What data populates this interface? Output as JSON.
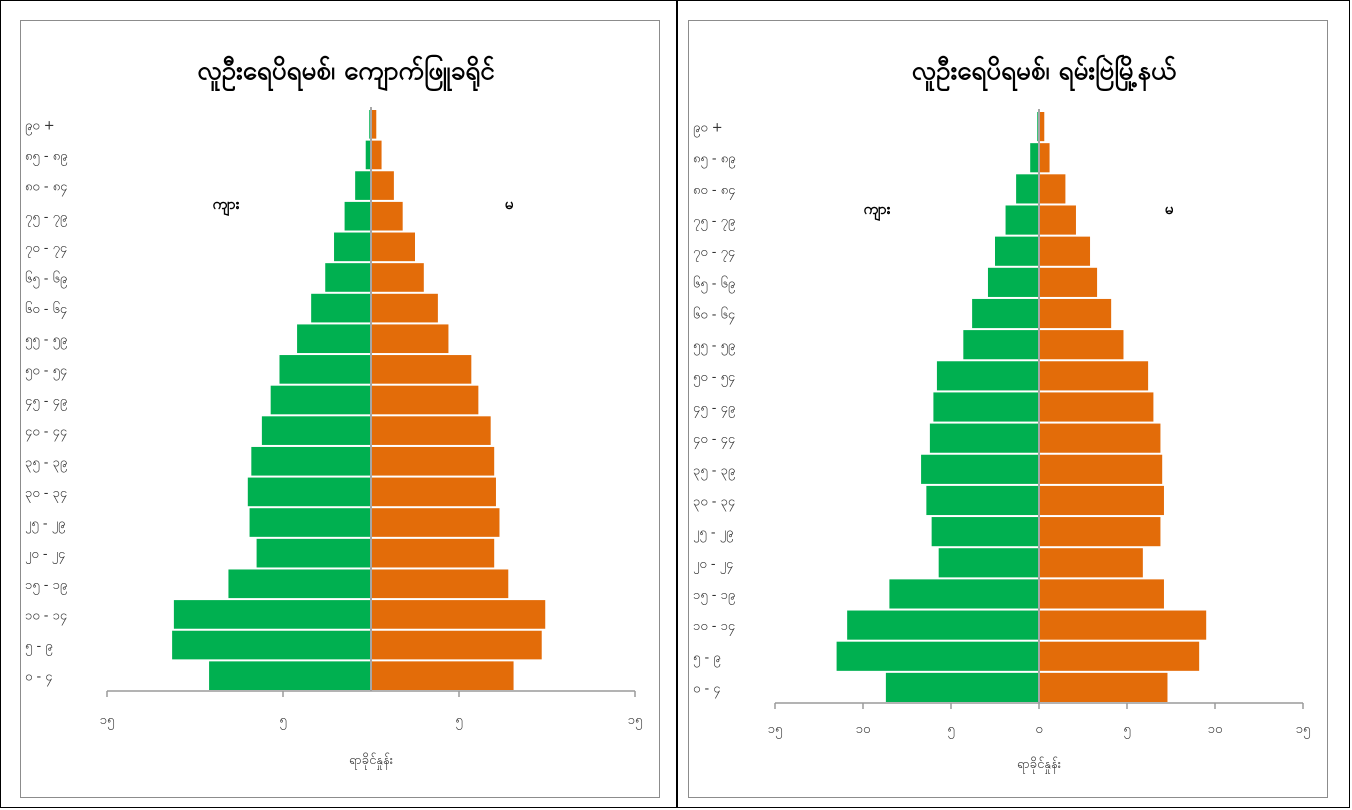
{
  "colors": {
    "male": "#00b050",
    "female": "#e36c09",
    "axis": "#9a9a9a",
    "spine": "#a6a6a6"
  },
  "chart_data": [
    {
      "type": "bar",
      "orientation": "horizontal-pyramid",
      "title": "လူဦးရေပိရမစ်၊ ကျောက်ဖြူခရိုင်",
      "xlabel": "ရာခိုင်နှုန်း",
      "categories": [
        "၀ - ၄",
        "၅ - ၉",
        "၁၀ - ၁၄",
        "၁၅ - ၁၉",
        "၂၀ - ၂၄",
        "၂၅ - ၂၉",
        "၃၀ - ၃၄",
        "၃၅ - ၃၉",
        "၄၀ - ၄၄",
        "၄၅ - ၄၉",
        "၅၀ - ၅၄",
        "၅၅ - ၅၉",
        "၆၀ - ၆၄",
        "၆၅ - ၆၉",
        "၇၀ - ၇၄",
        "၇၅ - ၇၉",
        "၈၀ - ၈၄",
        "၈၅ - ၈၉",
        "၉၀ +"
      ],
      "series": [
        {
          "name": "ကျား",
          "values": [
            9.2,
            11.3,
            11.2,
            8.1,
            6.5,
            6.9,
            7.0,
            6.8,
            6.2,
            5.7,
            5.2,
            4.2,
            3.4,
            2.6,
            2.1,
            1.5,
            0.9,
            0.3,
            0.1
          ]
        },
        {
          "name": "မ",
          "values": [
            8.1,
            9.7,
            9.9,
            7.8,
            7.0,
            7.3,
            7.1,
            7.0,
            6.8,
            6.1,
            5.7,
            4.4,
            3.8,
            3.0,
            2.5,
            1.8,
            1.3,
            0.6,
            0.3
          ]
        }
      ],
      "x_tick_labels": [
        "၁၅",
        "၅",
        "၅",
        "၁၅"
      ],
      "xlim": [
        -15,
        15
      ],
      "legend": {
        "male": "ကျား",
        "female": "မ"
      }
    },
    {
      "type": "bar",
      "orientation": "horizontal-pyramid",
      "title": "လူဦးရေပိရမစ်၊ ရမ်းဗြဲမြို့နယ်",
      "xlabel": "ရာခိုင်နှုန်း",
      "categories": [
        "၀ - ၄",
        "၅ - ၉",
        "၁၀ - ၁၄",
        "၁၅ - ၁၉",
        "၂၀ - ၂၄",
        "၂၅ - ၂၉",
        "၃၀ - ၃၄",
        "၃၅ - ၃၉",
        "၄၀ - ၄၄",
        "၄၅ - ၄၉",
        "၅၀ - ၅၄",
        "၅၅ - ၅၉",
        "၆၀ - ၆၄",
        "၆၅ - ၆၉",
        "၇၀ - ၇၄",
        "၇၅ - ၇၉",
        "၈၀ - ၈၄",
        "၈၅ - ၈၉",
        "၉၀ +"
      ],
      "series": [
        {
          "name": "ကျား",
          "values": [
            8.7,
            11.5,
            10.9,
            8.5,
            5.7,
            6.1,
            6.4,
            6.7,
            6.2,
            6.0,
            5.8,
            4.3,
            3.8,
            2.9,
            2.5,
            1.9,
            1.3,
            0.5,
            0.1
          ]
        },
        {
          "name": "မ",
          "values": [
            7.3,
            9.1,
            9.5,
            7.1,
            5.9,
            6.9,
            7.1,
            7.0,
            6.9,
            6.5,
            6.2,
            4.8,
            4.1,
            3.3,
            2.9,
            2.1,
            1.5,
            0.6,
            0.3
          ]
        }
      ],
      "x_tick_labels": [
        "၁၅",
        "၁၀",
        "၅",
        "၀",
        "၅",
        "၁၀",
        "၁၅"
      ],
      "xlim": [
        -15,
        15
      ],
      "legend": {
        "male": "ကျား",
        "female": "မ"
      }
    }
  ]
}
